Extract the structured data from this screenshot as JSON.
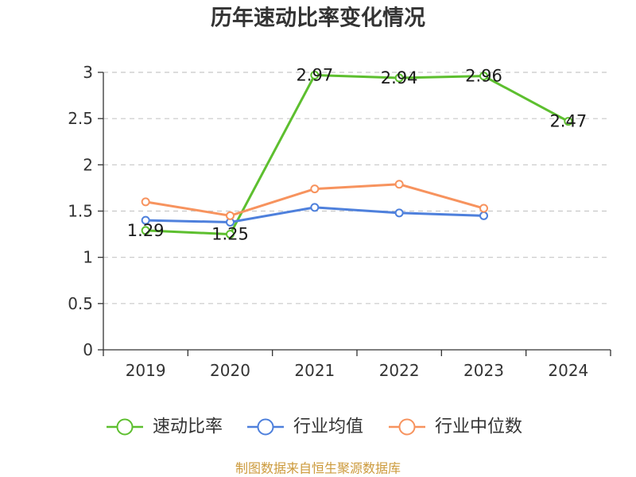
{
  "source_note": "制图数据来自恒生聚源数据库",
  "colors": {
    "grid": "#c8c8c8",
    "axis": "#333333",
    "source_note": "#cc9a3c"
  },
  "chart_data": {
    "type": "line",
    "title": "历年速动比率变化情况",
    "xlabel": "",
    "ylabel": "",
    "categories": [
      "2019",
      "2020",
      "2021",
      "2022",
      "2023",
      "2024"
    ],
    "ylim": [
      0,
      3
    ],
    "yticks": [
      0,
      0.5,
      1,
      1.5,
      2,
      2.5,
      3
    ],
    "ytick_labels": [
      "0",
      "0.5",
      "1",
      "1.5",
      "2",
      "2.5",
      "3"
    ],
    "grid": true,
    "legend_position": "bottom",
    "series": [
      {
        "name": "速动比率",
        "color": "#5dbf2f",
        "values": [
          1.29,
          1.25,
          2.97,
          2.94,
          2.96,
          2.47
        ],
        "data_labels": [
          "1.29",
          "1.25",
          "2.97",
          "2.94",
          "2.96",
          "2.47"
        ]
      },
      {
        "name": "行业均值",
        "color": "#4e80dc",
        "values": [
          1.4,
          1.38,
          1.54,
          1.48,
          1.45,
          null
        ]
      },
      {
        "name": "行业中位数",
        "color": "#f7935e",
        "values": [
          1.6,
          1.45,
          1.74,
          1.79,
          1.53,
          null
        ]
      }
    ]
  }
}
